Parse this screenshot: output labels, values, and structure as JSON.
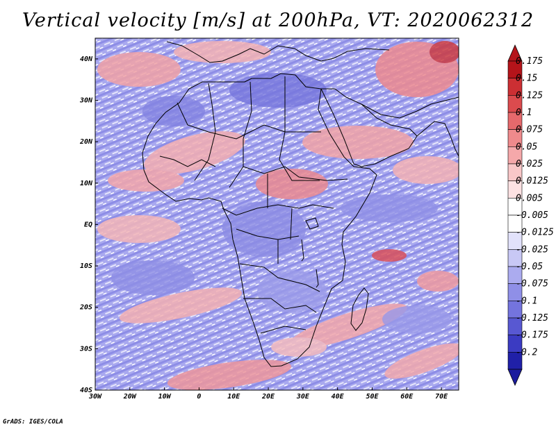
{
  "title": "Vertical velocity [m/s] at 200hPa, VT: 2020062312",
  "credit": "GrADS: IGES/COLA",
  "map": {
    "lon_range": [
      -30,
      75
    ],
    "lat_range": [
      -40,
      45
    ],
    "x_ticks": [
      {
        "value": -30,
        "label": "30W"
      },
      {
        "value": -20,
        "label": "20W"
      },
      {
        "value": -10,
        "label": "10W"
      },
      {
        "value": 0,
        "label": "0"
      },
      {
        "value": 10,
        "label": "10E"
      },
      {
        "value": 20,
        "label": "20E"
      },
      {
        "value": 30,
        "label": "30E"
      },
      {
        "value": 40,
        "label": "40E"
      },
      {
        "value": 50,
        "label": "50E"
      },
      {
        "value": 60,
        "label": "60E"
      },
      {
        "value": 70,
        "label": "70E"
      }
    ],
    "y_ticks": [
      {
        "value": 40,
        "label": "40N"
      },
      {
        "value": 30,
        "label": "30N"
      },
      {
        "value": 20,
        "label": "20N"
      },
      {
        "value": 10,
        "label": "10N"
      },
      {
        "value": 0,
        "label": "EQ"
      },
      {
        "value": -10,
        "label": "10S"
      },
      {
        "value": -20,
        "label": "20S"
      },
      {
        "value": -30,
        "label": "30S"
      },
      {
        "value": -40,
        "label": "40S"
      }
    ]
  },
  "colorbar": {
    "levels": [
      {
        "label": "0.175",
        "color": "#b5141a"
      },
      {
        "label": "0.15",
        "color": "#cc2f33"
      },
      {
        "label": "0.125",
        "color": "#db4b4e"
      },
      {
        "label": "0.1",
        "color": "#e6696c"
      },
      {
        "label": "0.075",
        "color": "#ef8a8c"
      },
      {
        "label": "0.05",
        "color": "#f5a8aa"
      },
      {
        "label": "0.025",
        "color": "#f9c7c8"
      },
      {
        "label": "0.0125",
        "color": "#fde2e3"
      },
      {
        "label": "0.005",
        "color": "#ffffff"
      },
      {
        "label": "-0.005",
        "color": "#ffffff"
      },
      {
        "label": "-0.0125",
        "color": "#e2e2fb"
      },
      {
        "label": "-0.025",
        "color": "#c8c8f5"
      },
      {
        "label": "-0.05",
        "color": "#ababef"
      },
      {
        "label": "-0.075",
        "color": "#8f8fe7"
      },
      {
        "label": "-0.1",
        "color": "#7474de"
      },
      {
        "label": "-0.125",
        "color": "#5858d2"
      },
      {
        "label": "-0.175",
        "color": "#3b3bc2"
      },
      {
        "label": "-0.2",
        "color": "#2020a8"
      }
    ],
    "top_color": "#b5141a",
    "bottom_color": "#1c1c9e"
  }
}
